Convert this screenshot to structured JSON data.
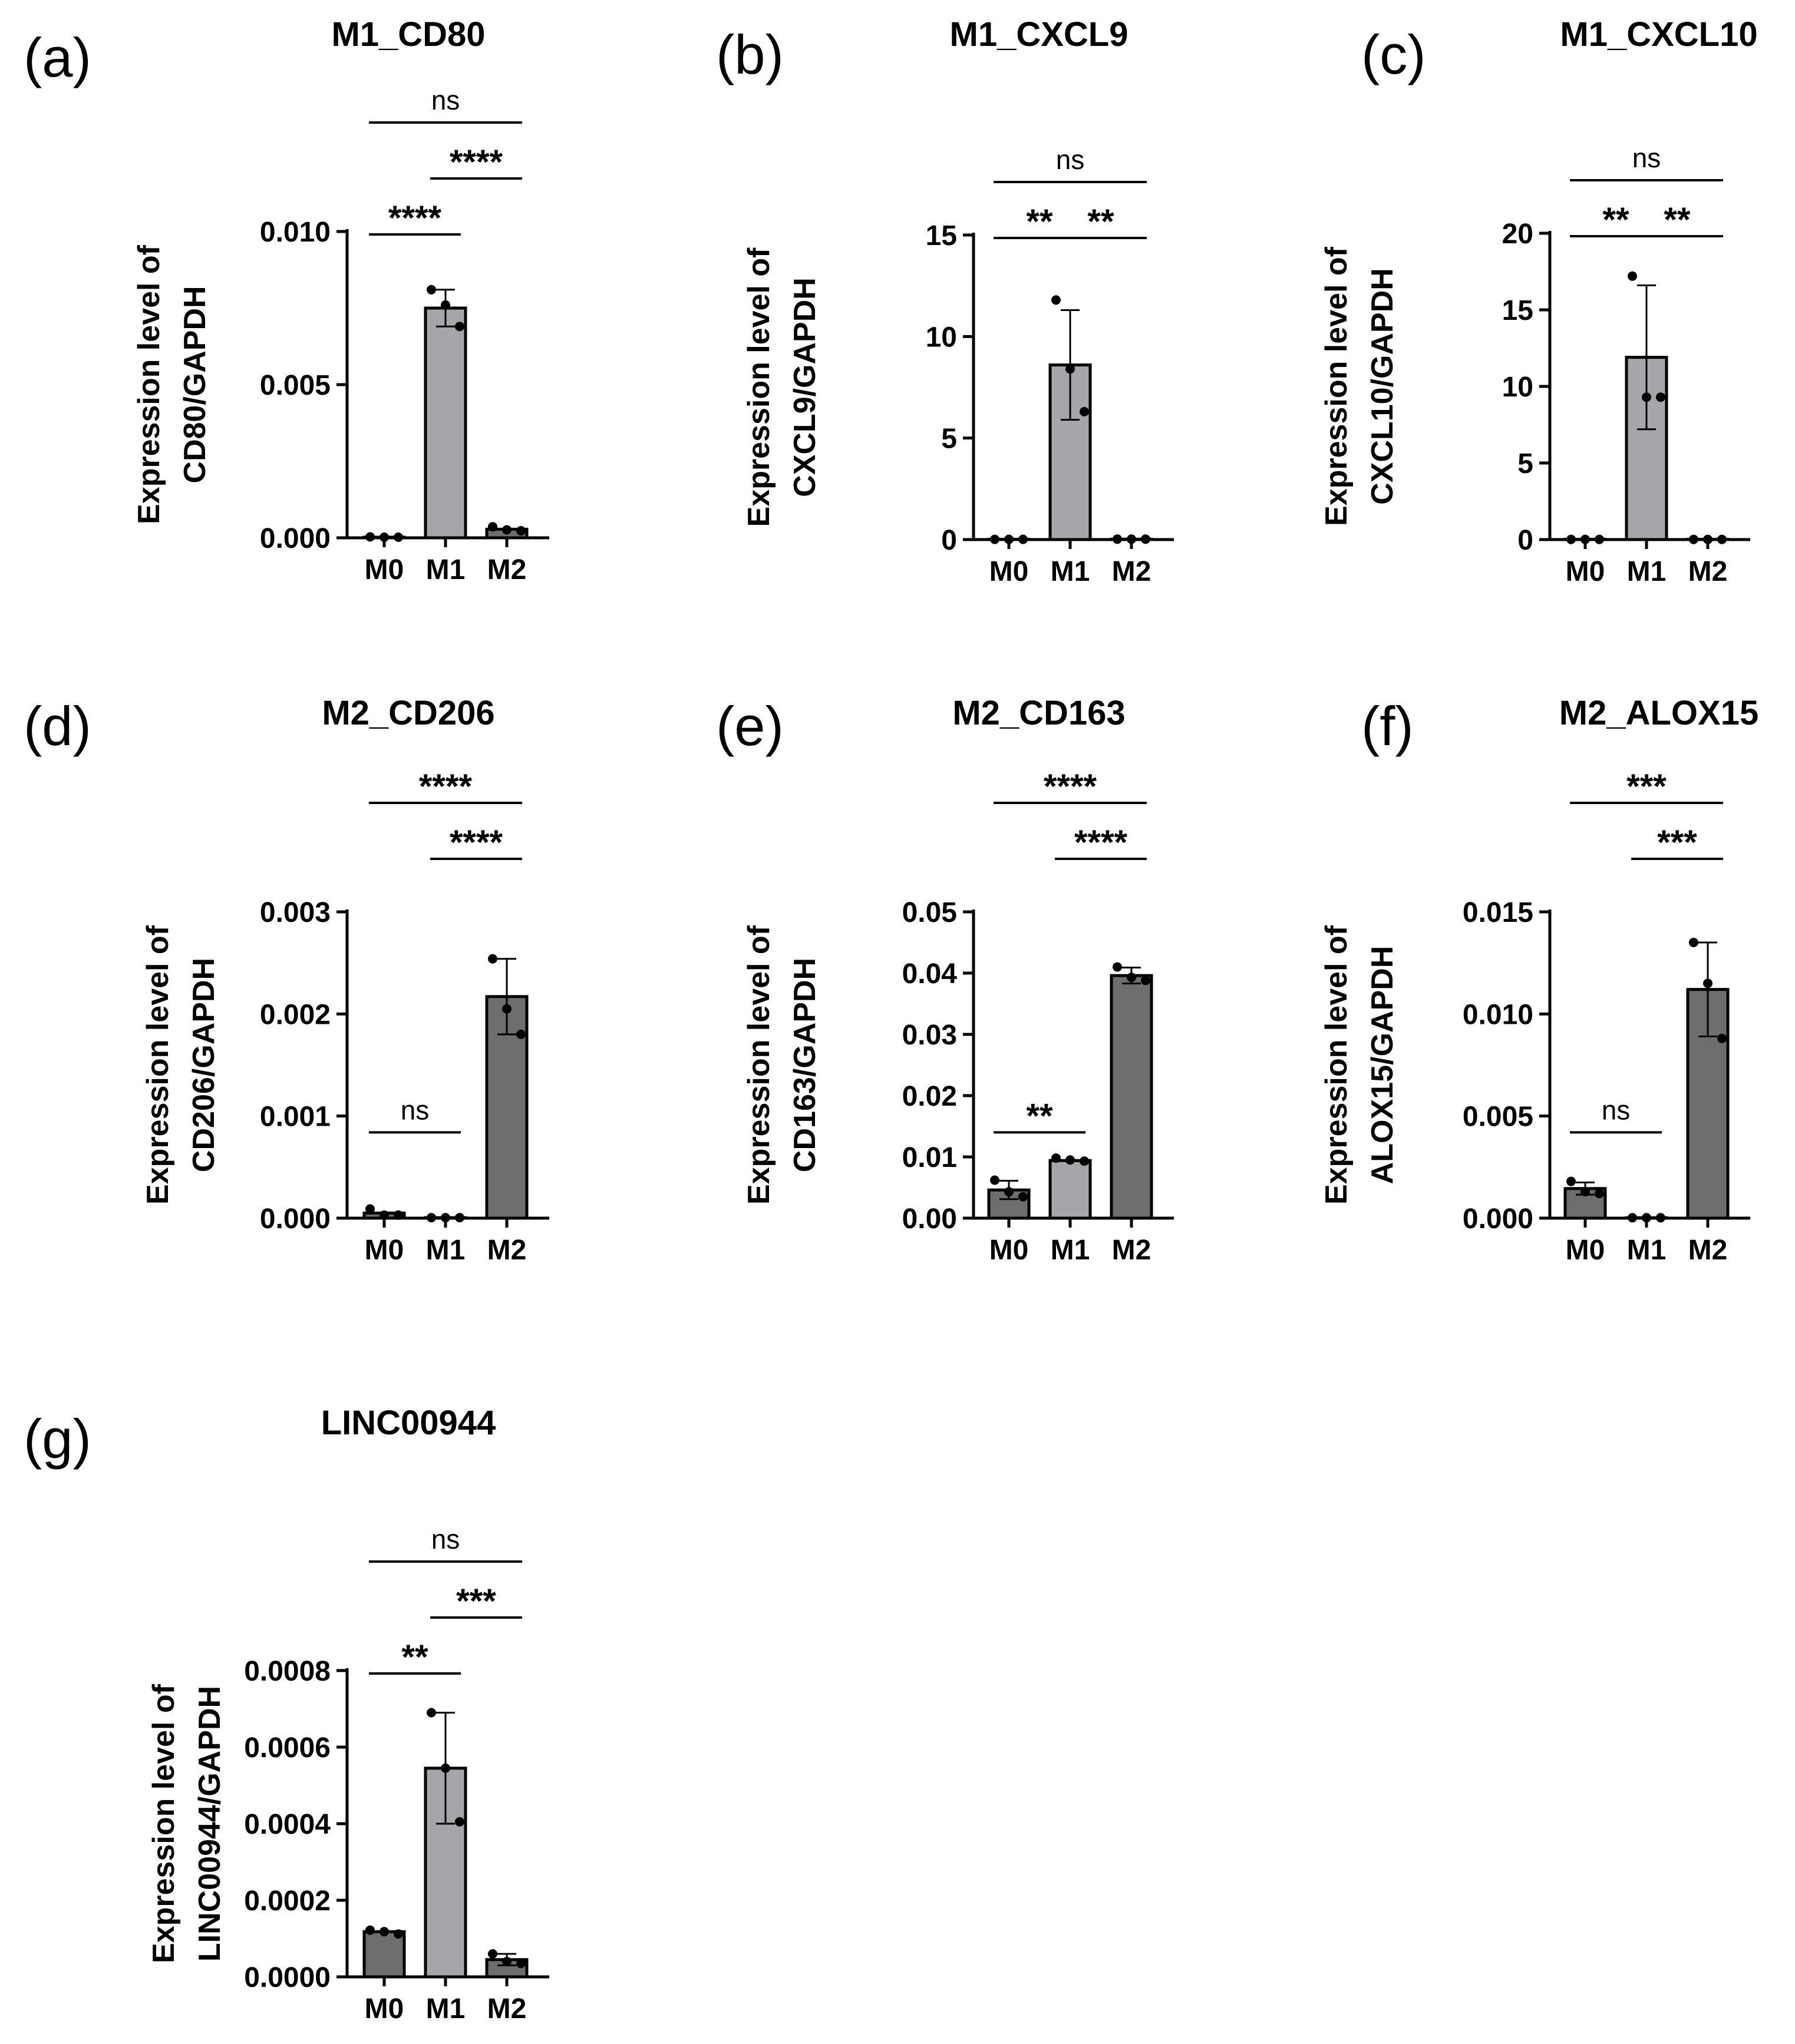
{
  "chart_data": [
    {
      "type": "bar",
      "panel_label": "(a)",
      "title": "M1_CD80",
      "ylabel_lines": [
        "Expression level of",
        "CD80/GAPDH"
      ],
      "categories": [
        "M0",
        "M1",
        "M2"
      ],
      "values": [
        2e-05,
        0.0075,
        0.00028
      ],
      "errors": [
        2e-05,
        0.0006,
        0.0001
      ],
      "points": [
        [
          3e-05,
          2e-05,
          2e-05
        ],
        [
          0.0081,
          0.0076,
          0.0069
        ],
        [
          0.00036,
          0.00026,
          0.00023
        ]
      ],
      "bar_colors": [
        "#6e6e6e",
        "#a5a5aa",
        "#6e6e6e"
      ],
      "ylim": [
        0,
        0.01
      ],
      "yticks": [
        0,
        0.005,
        0.01
      ],
      "ytick_labels": [
        "0.000",
        "0.005",
        "0.010"
      ],
      "brackets": [
        {
          "from": 0,
          "to": 1,
          "label": "****",
          "level": 0
        },
        {
          "from": 1,
          "to": 2,
          "label": "****",
          "level": 1
        },
        {
          "from": 0,
          "to": 2,
          "label": "ns",
          "level": 2
        }
      ]
    },
    {
      "type": "bar",
      "panel_label": "(b)",
      "title": "M1_CXCL9",
      "ylabel_lines": [
        "Expression level of",
        "CXCL9/GAPDH"
      ],
      "categories": [
        "M0",
        "M1",
        "M2"
      ],
      "values": [
        0.01,
        8.6,
        0.02
      ],
      "errors": [
        0.01,
        2.7,
        0.01
      ],
      "points": [
        [
          0.01,
          0.01,
          0.01
        ],
        [
          11.8,
          8.4,
          6.3
        ],
        [
          0.02,
          0.02,
          0.02
        ]
      ],
      "bar_colors": [
        "#6e6e6e",
        "#a5a5aa",
        "#6e6e6e"
      ],
      "ylim": [
        0,
        15
      ],
      "yticks": [
        0,
        5,
        10,
        15
      ],
      "ytick_labels": [
        "0",
        "5",
        "10",
        "15"
      ],
      "brackets": [
        {
          "from": 0,
          "to": 1,
          "label": "**",
          "level": 0
        },
        {
          "from": 1,
          "to": 2,
          "label": "**",
          "level": 0
        },
        {
          "from": 0,
          "to": 2,
          "label": "ns",
          "level": 1
        }
      ]
    },
    {
      "type": "bar",
      "panel_label": "(c)",
      "title": "M1_CXCL10",
      "ylabel_lines": [
        "Expression level of",
        "CXCL10/GAPDH"
      ],
      "categories": [
        "M0",
        "M1",
        "M2"
      ],
      "values": [
        0.01,
        11.9,
        0.01
      ],
      "errors": [
        0.01,
        4.7,
        0.01
      ],
      "points": [
        [
          0.01,
          0.01,
          0.01
        ],
        [
          17.2,
          9.3,
          9.3
        ],
        [
          0.01,
          0.01,
          0.01
        ]
      ],
      "bar_colors": [
        "#6e6e6e",
        "#a5a5aa",
        "#6e6e6e"
      ],
      "ylim": [
        0,
        20
      ],
      "yticks": [
        0,
        5,
        10,
        15,
        20
      ],
      "ytick_labels": [
        "0",
        "5",
        "10",
        "15",
        "20"
      ],
      "brackets": [
        {
          "from": 0,
          "to": 1,
          "label": "**",
          "level": 0
        },
        {
          "from": 1,
          "to": 2,
          "label": "**",
          "level": 0
        },
        {
          "from": 0,
          "to": 2,
          "label": "ns",
          "level": 1
        }
      ]
    },
    {
      "type": "bar",
      "panel_label": "(d)",
      "title": "M2_CD206",
      "ylabel_lines": [
        "Expression level of",
        "CD206/GAPDH"
      ],
      "categories": [
        "M0",
        "M1",
        "M2"
      ],
      "values": [
        5e-05,
        5e-06,
        0.00217
      ],
      "errors": [
        3e-05,
        5e-06,
        0.00037
      ],
      "points": [
        [
          9e-05,
          3e-05,
          3e-05
        ],
        [
          5e-06,
          5e-06,
          5e-06
        ],
        [
          0.00254,
          0.00205,
          0.0018
        ]
      ],
      "bar_colors": [
        "#6e6e6e",
        "#a5a5aa",
        "#6e6e6e"
      ],
      "ylim": [
        0,
        0.003
      ],
      "yticks": [
        0,
        0.001,
        0.002,
        0.003
      ],
      "ytick_labels": [
        "0.000",
        "0.001",
        "0.002",
        "0.003"
      ],
      "brackets": [
        {
          "from": 0,
          "to": 1,
          "label": "ns",
          "level": -1
        },
        {
          "from": 1,
          "to": 2,
          "label": "****",
          "level": 1
        },
        {
          "from": 0,
          "to": 2,
          "label": "****",
          "level": 2
        }
      ]
    },
    {
      "type": "bar",
      "panel_label": "(e)",
      "title": "M2_CD163",
      "ylabel_lines": [
        "Expression level of",
        "CD163/GAPDH"
      ],
      "categories": [
        "M0",
        "M1",
        "M2"
      ],
      "values": [
        0.0046,
        0.0094,
        0.0396
      ],
      "errors": [
        0.0015,
        0.0004,
        0.0013
      ],
      "points": [
        [
          0.0062,
          0.0043,
          0.0035
        ],
        [
          0.0098,
          0.0095,
          0.0093
        ],
        [
          0.041,
          0.0393,
          0.0388
        ]
      ],
      "bar_colors": [
        "#6e6e6e",
        "#a5a5aa",
        "#6e6e6e"
      ],
      "ylim": [
        0,
        0.05
      ],
      "yticks": [
        0,
        0.01,
        0.02,
        0.03,
        0.04,
        0.05
      ],
      "ytick_labels": [
        "0.00",
        "0.01",
        "0.02",
        "0.03",
        "0.04",
        "0.05"
      ],
      "brackets": [
        {
          "from": 0,
          "to": 1,
          "label": "**",
          "level": -1
        },
        {
          "from": 1,
          "to": 2,
          "label": "****",
          "level": 1
        },
        {
          "from": 0,
          "to": 2,
          "label": "****",
          "level": 2
        }
      ]
    },
    {
      "type": "bar",
      "panel_label": "(f)",
      "title": "M2_ALOX15",
      "ylabel_lines": [
        "Expression level of",
        "ALOX15/GAPDH"
      ],
      "categories": [
        "M0",
        "M1",
        "M2"
      ],
      "values": [
        0.00145,
        2e-05,
        0.0112
      ],
      "errors": [
        0.0003,
        2e-05,
        0.0023
      ],
      "points": [
        [
          0.0018,
          0.0013,
          0.0012
        ],
        [
          2e-05,
          2e-05,
          2e-05
        ],
        [
          0.0135,
          0.0115,
          0.0088
        ]
      ],
      "bar_colors": [
        "#6e6e6e",
        "#a5a5aa",
        "#6e6e6e"
      ],
      "ylim": [
        0,
        0.015
      ],
      "yticks": [
        0,
        0.005,
        0.01,
        0.015
      ],
      "ytick_labels": [
        "0.000",
        "0.005",
        "0.010",
        "0.015"
      ],
      "brackets": [
        {
          "from": 0,
          "to": 1,
          "label": "ns",
          "level": -1
        },
        {
          "from": 1,
          "to": 2,
          "label": "***",
          "level": 1
        },
        {
          "from": 0,
          "to": 2,
          "label": "***",
          "level": 2
        }
      ]
    },
    {
      "type": "bar",
      "panel_label": "(g)",
      "title": "LINC00944",
      "ylabel_lines": [
        "Expression level of",
        "LINC00944/GAPDH"
      ],
      "categories": [
        "M0",
        "M1",
        "M2"
      ],
      "values": [
        0.000118,
        0.000545,
        4.5e-05
      ],
      "errors": [
        7e-06,
        0.000145,
        1.5e-05
      ],
      "points": [
        [
          0.000122,
          0.000118,
          0.000112
        ],
        [
          0.00069,
          0.000545,
          0.000405
        ],
        [
          6e-05,
          4e-05,
          3.5e-05
        ]
      ],
      "bar_colors": [
        "#6e6e6e",
        "#a5a5aa",
        "#6e6e6e"
      ],
      "ylim": [
        0,
        0.0008
      ],
      "yticks": [
        0,
        0.0002,
        0.0004,
        0.0006,
        0.0008
      ],
      "ytick_labels": [
        "0.0000",
        "0.0002",
        "0.0004",
        "0.0006",
        "0.0008"
      ],
      "brackets": [
        {
          "from": 0,
          "to": 1,
          "label": "**",
          "level": 0
        },
        {
          "from": 1,
          "to": 2,
          "label": "***",
          "level": 1
        },
        {
          "from": 0,
          "to": 2,
          "label": "ns",
          "level": 2
        }
      ]
    }
  ]
}
